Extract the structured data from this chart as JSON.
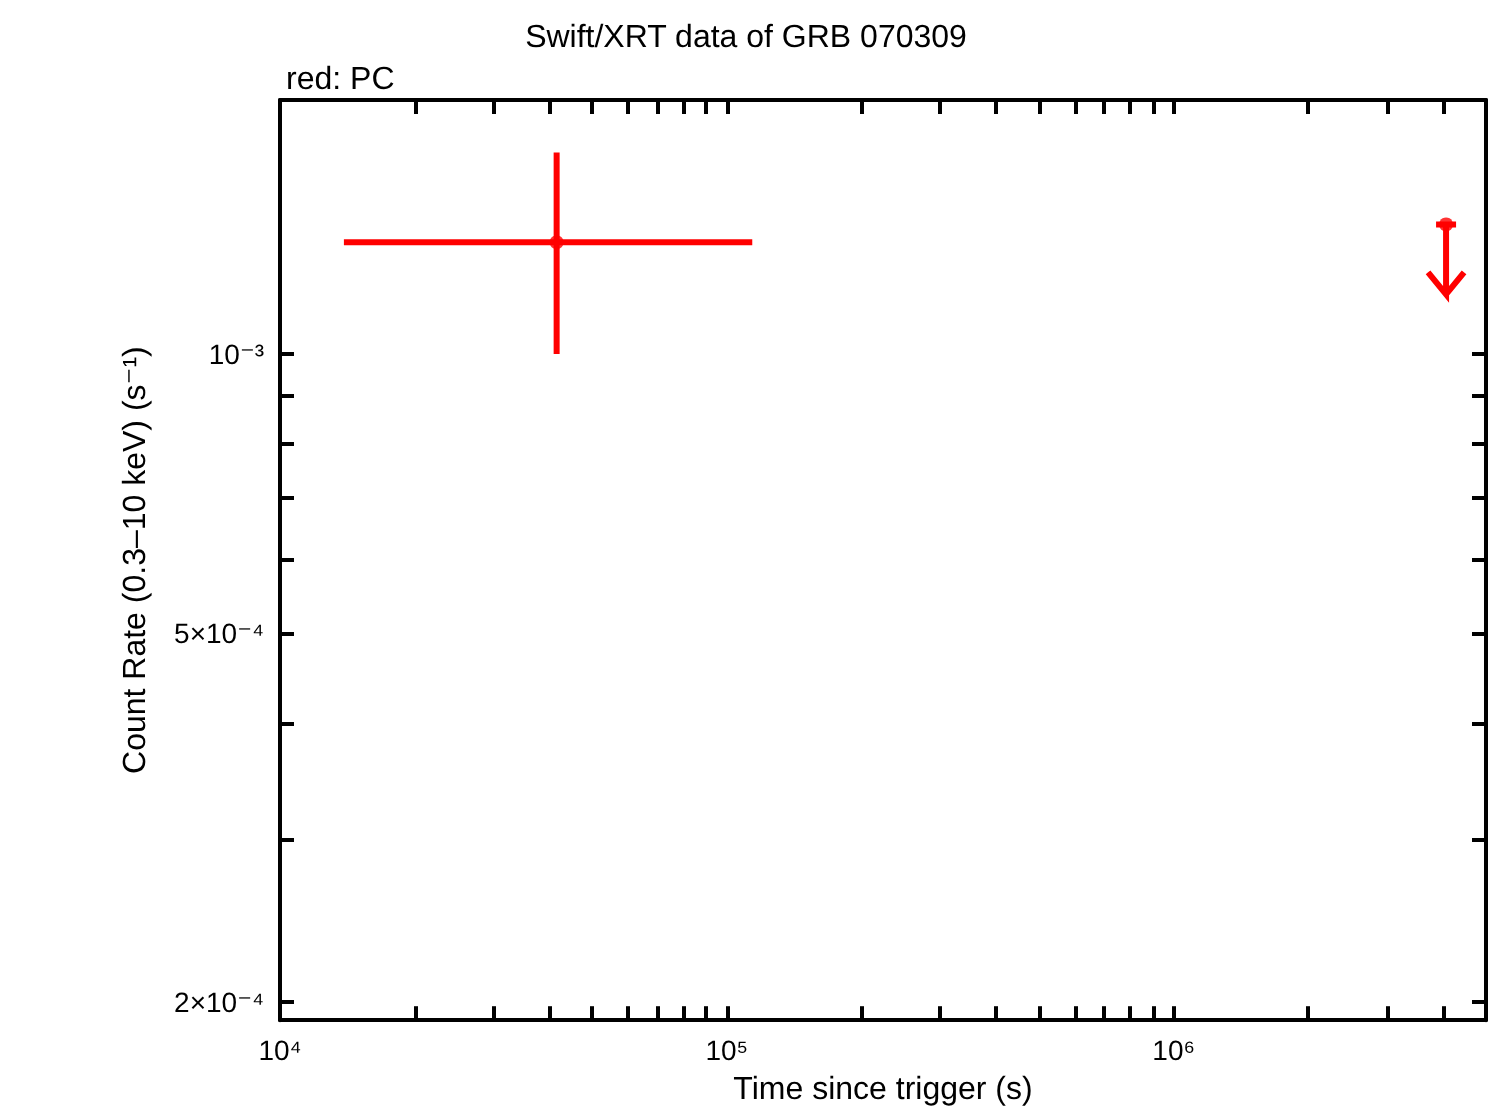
{
  "chart_data": {
    "type": "scatter",
    "title": "Swift/XRT data of GRB 070309",
    "subtitle": "red: PC",
    "xlabel": "Time since trigger (s)",
    "ylabel": "Count Rate (0.3–10 keV) (s⁻¹)",
    "log": "xy",
    "grid": false,
    "xlim": [
      10000,
      5000000
    ],
    "ylim": [
      0.000191,
      0.00188
    ],
    "xticks": [
      {
        "value": 10000,
        "label": "10⁴"
      },
      {
        "value": 20000,
        "label": null
      },
      {
        "value": 30000,
        "label": null
      },
      {
        "value": 40000,
        "label": null
      },
      {
        "value": 50000,
        "label": null
      },
      {
        "value": 60000,
        "label": null
      },
      {
        "value": 70000,
        "label": null
      },
      {
        "value": 80000,
        "label": null
      },
      {
        "value": 90000,
        "label": null
      },
      {
        "value": 100000,
        "label": "10⁵"
      },
      {
        "value": 200000,
        "label": null
      },
      {
        "value": 300000,
        "label": null
      },
      {
        "value": 400000,
        "label": null
      },
      {
        "value": 500000,
        "label": null
      },
      {
        "value": 600000,
        "label": null
      },
      {
        "value": 700000,
        "label": null
      },
      {
        "value": 800000,
        "label": null
      },
      {
        "value": 900000,
        "label": null
      },
      {
        "value": 1000000,
        "label": "10⁶"
      },
      {
        "value": 2000000,
        "label": null
      },
      {
        "value": 3000000,
        "label": null
      },
      {
        "value": 4000000,
        "label": null
      },
      {
        "value": 5000000,
        "label": null
      }
    ],
    "yticks": [
      {
        "value": 0.0002,
        "label": "2×10⁻⁴"
      },
      {
        "value": 0.0003,
        "label": null
      },
      {
        "value": 0.0004,
        "label": null
      },
      {
        "value": 0.0005,
        "label": "5×10⁻⁴"
      },
      {
        "value": 0.0006,
        "label": null
      },
      {
        "value": 0.0007,
        "label": null
      },
      {
        "value": 0.0008,
        "label": null
      },
      {
        "value": 0.0009,
        "label": null
      },
      {
        "value": 0.001,
        "label": "10⁻³"
      }
    ],
    "series": [
      {
        "color": "#ff0000",
        "x": [
          41600
        ],
        "values": [
          0.00132
        ],
        "errors": [
          [
            0.001,
            0.00165
          ]
        ],
        "xerrors": [
          [
            13900,
            114000
          ]
        ]
      },
      {
        "color": "#ff0000",
        "x": [
          4070000
        ],
        "values": [
          0.00138
        ],
        "errors": [
          [
            0.00116,
            0.00138
          ]
        ]
      }
    ]
  }
}
